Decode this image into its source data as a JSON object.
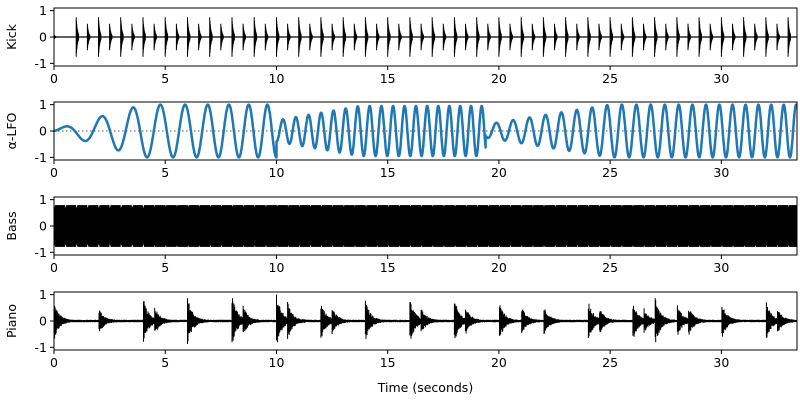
{
  "chart_data": [
    {
      "type": "line",
      "ylabel": "Kick",
      "xlim": [
        0,
        33.4
      ],
      "ylim": [
        -1.1,
        1.1
      ],
      "xticks": [
        "0",
        "5",
        "10",
        "15",
        "20",
        "25",
        "30"
      ],
      "yticks": [
        "-1",
        "0",
        "1"
      ],
      "color": "#000000",
      "series": [
        {
          "signal": "drum-hits",
          "onsets": [
            0.0,
            1.0,
            1.5,
            2.0,
            2.5,
            3.0,
            3.5,
            4.0,
            4.5,
            5.0,
            5.5,
            6.0,
            6.5,
            7.0,
            7.5,
            8.0,
            8.5,
            9.0,
            9.5,
            10.0,
            10.5,
            11.0,
            11.5,
            12.0,
            12.5,
            13.0,
            13.5,
            14.0,
            14.5,
            15.0,
            15.5,
            16.0,
            16.5,
            17.0,
            17.5,
            18.0,
            18.5,
            19.0,
            19.5,
            20.0,
            20.5,
            21.0,
            21.5,
            22.0,
            22.5,
            23.0,
            23.5,
            24.0,
            24.5,
            25.0,
            25.5,
            26.0,
            26.5,
            27.0,
            27.5,
            28.0,
            28.5,
            29.0,
            29.5,
            30.0,
            30.5,
            31.0,
            31.5,
            32.0,
            32.5,
            33.0
          ],
          "amplitude": [
            0.1,
            0.75,
            0.5,
            0.75,
            0.5,
            0.75,
            0.5,
            0.75,
            0.5,
            0.75,
            0.5,
            0.75,
            0.5,
            0.75,
            0.5,
            0.75,
            0.5,
            0.75,
            0.5,
            0.75,
            0.5,
            0.75,
            0.5,
            0.75,
            0.5,
            0.75,
            0.5,
            0.75,
            0.5,
            0.75,
            0.5,
            0.75,
            0.5,
            0.75,
            0.5,
            0.75,
            0.5,
            0.75,
            0.5,
            0.75,
            0.5,
            0.75,
            0.5,
            0.75,
            0.5,
            0.75,
            0.5,
            0.75,
            0.5,
            0.75,
            0.5,
            0.75,
            0.5,
            0.75,
            0.5,
            0.75,
            0.5,
            0.75,
            0.5,
            0.75,
            0.5,
            0.75,
            0.5,
            0.75,
            0.5,
            0.75
          ]
        }
      ]
    },
    {
      "type": "line",
      "ylabel": "α-LFO",
      "xlim": [
        0,
        33.4
      ],
      "ylim": [
        -1.1,
        1.1
      ],
      "xticks": [
        "0",
        "5",
        "10",
        "15",
        "20",
        "25",
        "30"
      ],
      "yticks": [
        "-1",
        "0",
        "1"
      ],
      "color": "#1f77b4",
      "zero_line": "dotted",
      "series": [
        {
          "signal": "oscillation",
          "segments": [
            {
              "start": 0.0,
              "end": 10.0,
              "amp_start": 0.05,
              "amp_end": 1.0,
              "freq_start": 0.5,
              "freq_end": 1.25
            },
            {
              "start": 10.0,
              "end": 19.4,
              "amp_start": 0.4,
              "amp_end": 0.95,
              "freq_start": 1.7,
              "freq_end": 2.1
            },
            {
              "start": 19.4,
              "end": 33.4,
              "amp_start": 0.25,
              "amp_end": 1.0,
              "freq_start": 1.3,
              "freq_end": 1.8
            }
          ]
        }
      ]
    },
    {
      "type": "area",
      "ylabel": "Bass",
      "xlim": [
        0,
        33.4
      ],
      "ylim": [
        -1.1,
        1.1
      ],
      "xticks": [
        "0",
        "5",
        "10",
        "15",
        "20",
        "25",
        "30"
      ],
      "yticks": [
        "-1",
        "0",
        "1"
      ],
      "color": "#000000",
      "series": [
        {
          "signal": "sustained-envelope",
          "note_period": 0.5,
          "amplitude": 0.78,
          "gap_depth": 0.15
        }
      ]
    },
    {
      "type": "line",
      "ylabel": "Piano",
      "xlabel": "Time (seconds)",
      "xlim": [
        0,
        33.4
      ],
      "ylim": [
        -1.1,
        1.1
      ],
      "xticks": [
        "0",
        "5",
        "10",
        "15",
        "20",
        "25",
        "30"
      ],
      "yticks": [
        "-1",
        "0",
        "1"
      ],
      "color": "#000000",
      "series": [
        {
          "signal": "decaying-notes",
          "onsets": [
            0.0,
            2.0,
            4.0,
            4.5,
            6.0,
            8.0,
            8.5,
            10.0,
            10.5,
            12.0,
            12.5,
            14.0,
            16.0,
            16.5,
            18.0,
            18.5,
            20.0,
            21.0,
            22.0,
            24.0,
            24.5,
            26.0,
            26.5,
            27.0,
            28.0,
            28.5,
            30.0,
            32.0,
            32.5
          ],
          "amplitude": [
            0.7,
            0.5,
            0.9,
            0.6,
            0.9,
            0.95,
            0.55,
            1.0,
            0.7,
            0.7,
            0.5,
            0.75,
            0.8,
            0.5,
            0.8,
            0.5,
            0.75,
            0.55,
            0.6,
            0.8,
            0.55,
            0.8,
            0.5,
            1.0,
            0.65,
            0.6,
            0.7,
            0.75,
            0.5
          ]
        }
      ]
    }
  ]
}
